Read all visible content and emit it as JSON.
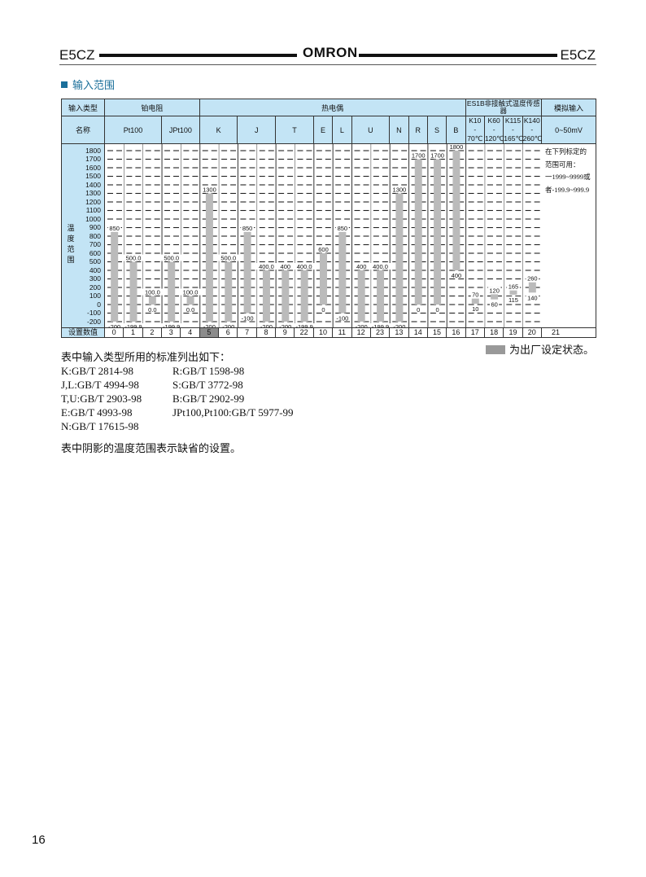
{
  "header": {
    "left": "E5CZ",
    "logo": "OMRON",
    "right": "E5CZ"
  },
  "section_title": "输入范围",
  "table": {
    "row1": {
      "label": "输入类型",
      "groups": [
        "铂电阻",
        "热电偶",
        "ES1B非接触式温度传感器",
        "模拟输入"
      ]
    },
    "row2": {
      "label": "名称",
      "names": [
        "Pt100",
        "JPt100",
        "K",
        "J",
        "T",
        "E",
        "L",
        "U",
        "N",
        "R",
        "S",
        "B"
      ],
      "es1b": [
        {
          "a": "K10",
          "b": "70℃"
        },
        {
          "a": "K60",
          "b": "120℃"
        },
        {
          "a": "K115",
          "b": "165℃"
        },
        {
          "a": "K140",
          "b": "260℃"
        }
      ],
      "analog": "0~50mV"
    },
    "y_label": "温度范围",
    "y_ticks": [
      "1800",
      "1700",
      "1600",
      "1500",
      "1400",
      "1300",
      "1200",
      "1100",
      "1000",
      "900",
      "800",
      "700",
      "600",
      "500",
      "400",
      "300",
      "200",
      "100",
      "0",
      "-100",
      "-200"
    ],
    "analog_note": [
      "在下列标定的",
      "范围可用：",
      "一1999~9999或",
      "者-199.9~999.9"
    ],
    "setting_label": "设置数值",
    "settings": [
      "0",
      "1",
      "2",
      "3",
      "4",
      "5",
      "6",
      "7",
      "8",
      "9",
      "22",
      "10",
      "11",
      "12",
      "23",
      "13",
      "14",
      "15",
      "16",
      "17",
      "18",
      "19",
      "20",
      "21"
    ],
    "default_setting": "5",
    "shade_color": "#999999",
    "header_color": "#c3e4f5"
  },
  "chart_data": {
    "type": "bar",
    "ylim": [
      -200,
      1800
    ],
    "grid": true,
    "categories": [
      "0",
      "1",
      "2",
      "3",
      "4",
      "5",
      "6",
      "7",
      "8",
      "9",
      "22",
      "10",
      "11",
      "12",
      "23",
      "13",
      "14",
      "15",
      "16",
      "17",
      "18",
      "19",
      "20"
    ],
    "ranges": [
      {
        "low": -200,
        "high": 850,
        "low_label": "-200",
        "high_label": "850"
      },
      {
        "low": -199.9,
        "high": 500,
        "low_label": "-199.9",
        "high_label": "500.0"
      },
      {
        "low": 0,
        "high": 100,
        "low_label": "0.0",
        "high_label": "100.0"
      },
      {
        "low": -199.9,
        "high": 500,
        "low_label": "-199.9",
        "high_label": "500.0"
      },
      {
        "low": 0,
        "high": 100,
        "low_label": "0.0",
        "high_label": "100.0"
      },
      {
        "low": -200,
        "high": 1300,
        "low_label": "-200",
        "high_label": "1300"
      },
      {
        "low": -200,
        "high": 500,
        "low_label": "-200",
        "high_label": "500.0"
      },
      {
        "low": -100,
        "high": 850,
        "low_label": "-100",
        "high_label": "850"
      },
      {
        "low": -200,
        "high": 400,
        "low_label": "-200",
        "high_label": "400.0"
      },
      {
        "low": -200,
        "high": 400,
        "low_label": "-200",
        "high_label": "400"
      },
      {
        "low": -199.9,
        "high": 400,
        "low_label": "-199.9",
        "high_label": "400.0"
      },
      {
        "low": 0,
        "high": 600,
        "low_label": "0",
        "high_label": "600"
      },
      {
        "low": -100,
        "high": 850,
        "low_label": "-100",
        "high_label": "850"
      },
      {
        "low": -200,
        "high": 400,
        "low_label": "-200",
        "high_label": "400"
      },
      {
        "low": -199.9,
        "high": 400,
        "low_label": "-199.9",
        "high_label": "400.0"
      },
      {
        "low": -200,
        "high": 1300,
        "low_label": "-200",
        "high_label": "1300"
      },
      {
        "low": 0,
        "high": 1700,
        "low_label": "0",
        "high_label": "1700"
      },
      {
        "low": 0,
        "high": 1700,
        "low_label": "0",
        "high_label": "1700"
      },
      {
        "low": 400,
        "high": 1800,
        "low_label": "400",
        "high_label": "1800"
      },
      {
        "low": 10,
        "high": 70,
        "low_label": "10",
        "high_label": "70"
      },
      {
        "low": 60,
        "high": 120,
        "low_label": "60",
        "high_label": "120"
      },
      {
        "low": 115,
        "high": 165,
        "low_label": "115",
        "high_label": "165"
      },
      {
        "low": 140,
        "high": 260,
        "low_label": "140",
        "high_label": "260"
      }
    ],
    "bar_color": "#bbbbbb"
  },
  "legend": "为出厂设定状态。",
  "notes": {
    "intro": "表中输入类型所用的标准列出如下：",
    "rows": [
      [
        "K:GB/T 2814-98",
        "R:GB/T 1598-98"
      ],
      [
        "J,L:GB/T 4994-98",
        "S:GB/T 3772-98"
      ],
      [
        "T,U:GB/T 2903-98",
        "B:GB/T 2902-99"
      ],
      [
        "E:GB/T 4993-98",
        "JPt100,Pt100:GB/T 5977-99"
      ],
      [
        "N:GB/T 17615-98",
        ""
      ]
    ],
    "footer": "表中阴影的温度范围表示缺省的设置。"
  },
  "page_number": "16"
}
